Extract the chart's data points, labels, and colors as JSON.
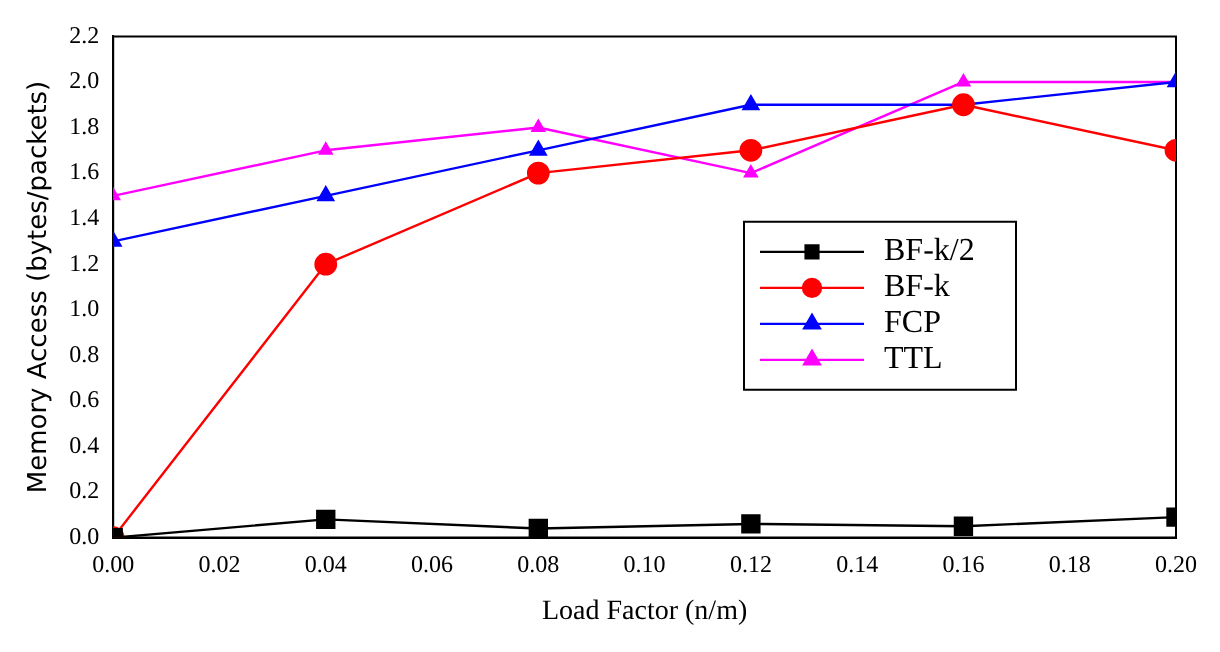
{
  "chart_data": {
    "type": "line",
    "xlabel": "Load Factor (n/m)",
    "ylabel": "Memory Access (bytes/packets)",
    "x": [
      0,
      0.04,
      0.08,
      0.12,
      0.16,
      0.2
    ],
    "series": [
      {
        "name": "BF-k/2",
        "color": "#000000",
        "marker": "square",
        "values": [
          0,
          0.08,
          0.04,
          0.06,
          0.05,
          0.09
        ]
      },
      {
        "name": "BF-k",
        "color": "#ff0000",
        "marker": "circle",
        "values": [
          0,
          1.2,
          1.6,
          1.7,
          1.9,
          1.7
        ]
      },
      {
        "name": "FCP",
        "color": "#0000ff",
        "marker": "triangle",
        "values": [
          1.3,
          1.5,
          1.7,
          1.9,
          1.9,
          2.0
        ]
      },
      {
        "name": "TTL",
        "color": "#ff00ff",
        "marker": "triangle",
        "values": [
          1.5,
          1.7,
          1.8,
          1.6,
          2.0,
          2.0
        ]
      }
    ],
    "xlim": [
      0,
      0.2
    ],
    "ylim": [
      0,
      2.2
    ],
    "xticks": [
      {
        "value": 0,
        "label": "0.00"
      },
      0.02,
      0.04,
      0.06,
      0.08,
      {
        "value": 0.1,
        "label": "0.10"
      },
      0.12,
      0.14,
      0.16,
      0.18,
      {
        "value": 0.2,
        "label": "0.20"
      }
    ],
    "yticks": [
      {
        "value": 0,
        "label": "0.0"
      },
      0.2,
      0.4,
      0.6,
      0.8,
      {
        "value": 1,
        "label": "1.0"
      },
      1.2,
      1.4,
      1.6,
      1.8,
      {
        "value": 2,
        "label": "2.0"
      },
      2.2
    ],
    "grid": false,
    "legend": "right",
    "line_style": "solid"
  }
}
